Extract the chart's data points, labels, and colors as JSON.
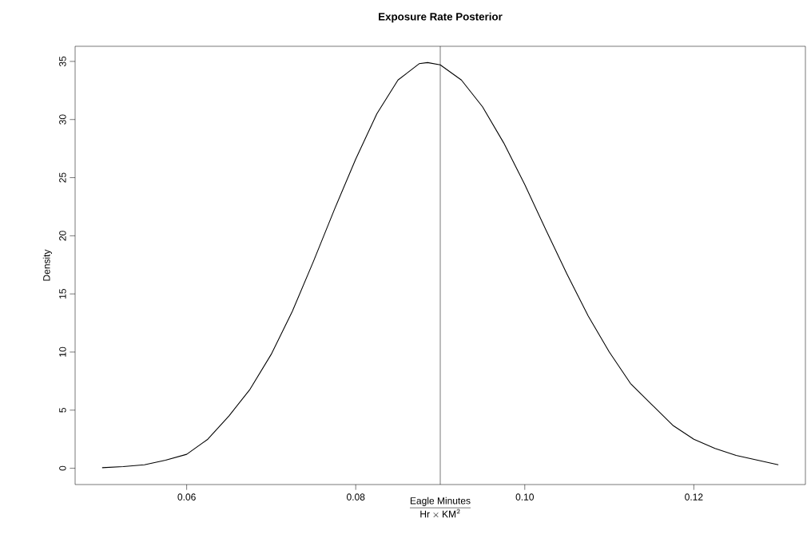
{
  "chart_data": {
    "type": "line",
    "title": "Exposure Rate Posterior",
    "xlabel": "\\frac{\\hbox{Eagle Minutes}}{\\hbox{Hr}\\times \\hbox{KM}^{2}}",
    "ylabel": "Density",
    "x": [
      0.05,
      0.0525,
      0.055,
      0.0575,
      0.06,
      0.0625,
      0.065,
      0.0675,
      0.07,
      0.0725,
      0.075,
      0.0775,
      0.08,
      0.0825,
      0.085,
      0.0875,
      0.0885,
      0.09,
      0.0925,
      0.095,
      0.0975,
      0.1,
      0.1025,
      0.105,
      0.1075,
      0.11,
      0.1125,
      0.115,
      0.1175,
      0.12,
      0.1225,
      0.125,
      0.1275,
      0.13
    ],
    "series": [
      {
        "color": "#000000",
        "values": [
          0.05,
          0.15,
          0.3,
          0.7,
          1.2,
          2.5,
          4.5,
          6.8,
          9.8,
          13.5,
          17.8,
          22.3,
          26.6,
          30.5,
          33.4,
          34.8,
          34.9,
          34.7,
          33.4,
          31.1,
          28.0,
          24.4,
          20.5,
          16.7,
          13.1,
          10.0,
          7.3,
          5.5,
          3.7,
          2.5,
          1.7,
          1.1,
          0.7,
          0.3
        ]
      }
    ],
    "xlim": [
      0.0468,
      0.1332
    ],
    "ylim": [
      -1.4,
      36.3
    ],
    "xticks": [
      {
        "value": 0.06,
        "label": "0.06"
      },
      {
        "value": 0.08,
        "label": "0.08"
      },
      {
        "value": 0.1,
        "label": "0.10"
      },
      {
        "value": 0.12,
        "label": "0.12"
      }
    ],
    "yticks": [
      0,
      5,
      10,
      15,
      20,
      25,
      30,
      35
    ],
    "ref_lines": [
      {
        "axis": "x",
        "value": 0.09,
        "color": "#000000"
      }
    ],
    "marker": "none",
    "line_style": "solid"
  }
}
